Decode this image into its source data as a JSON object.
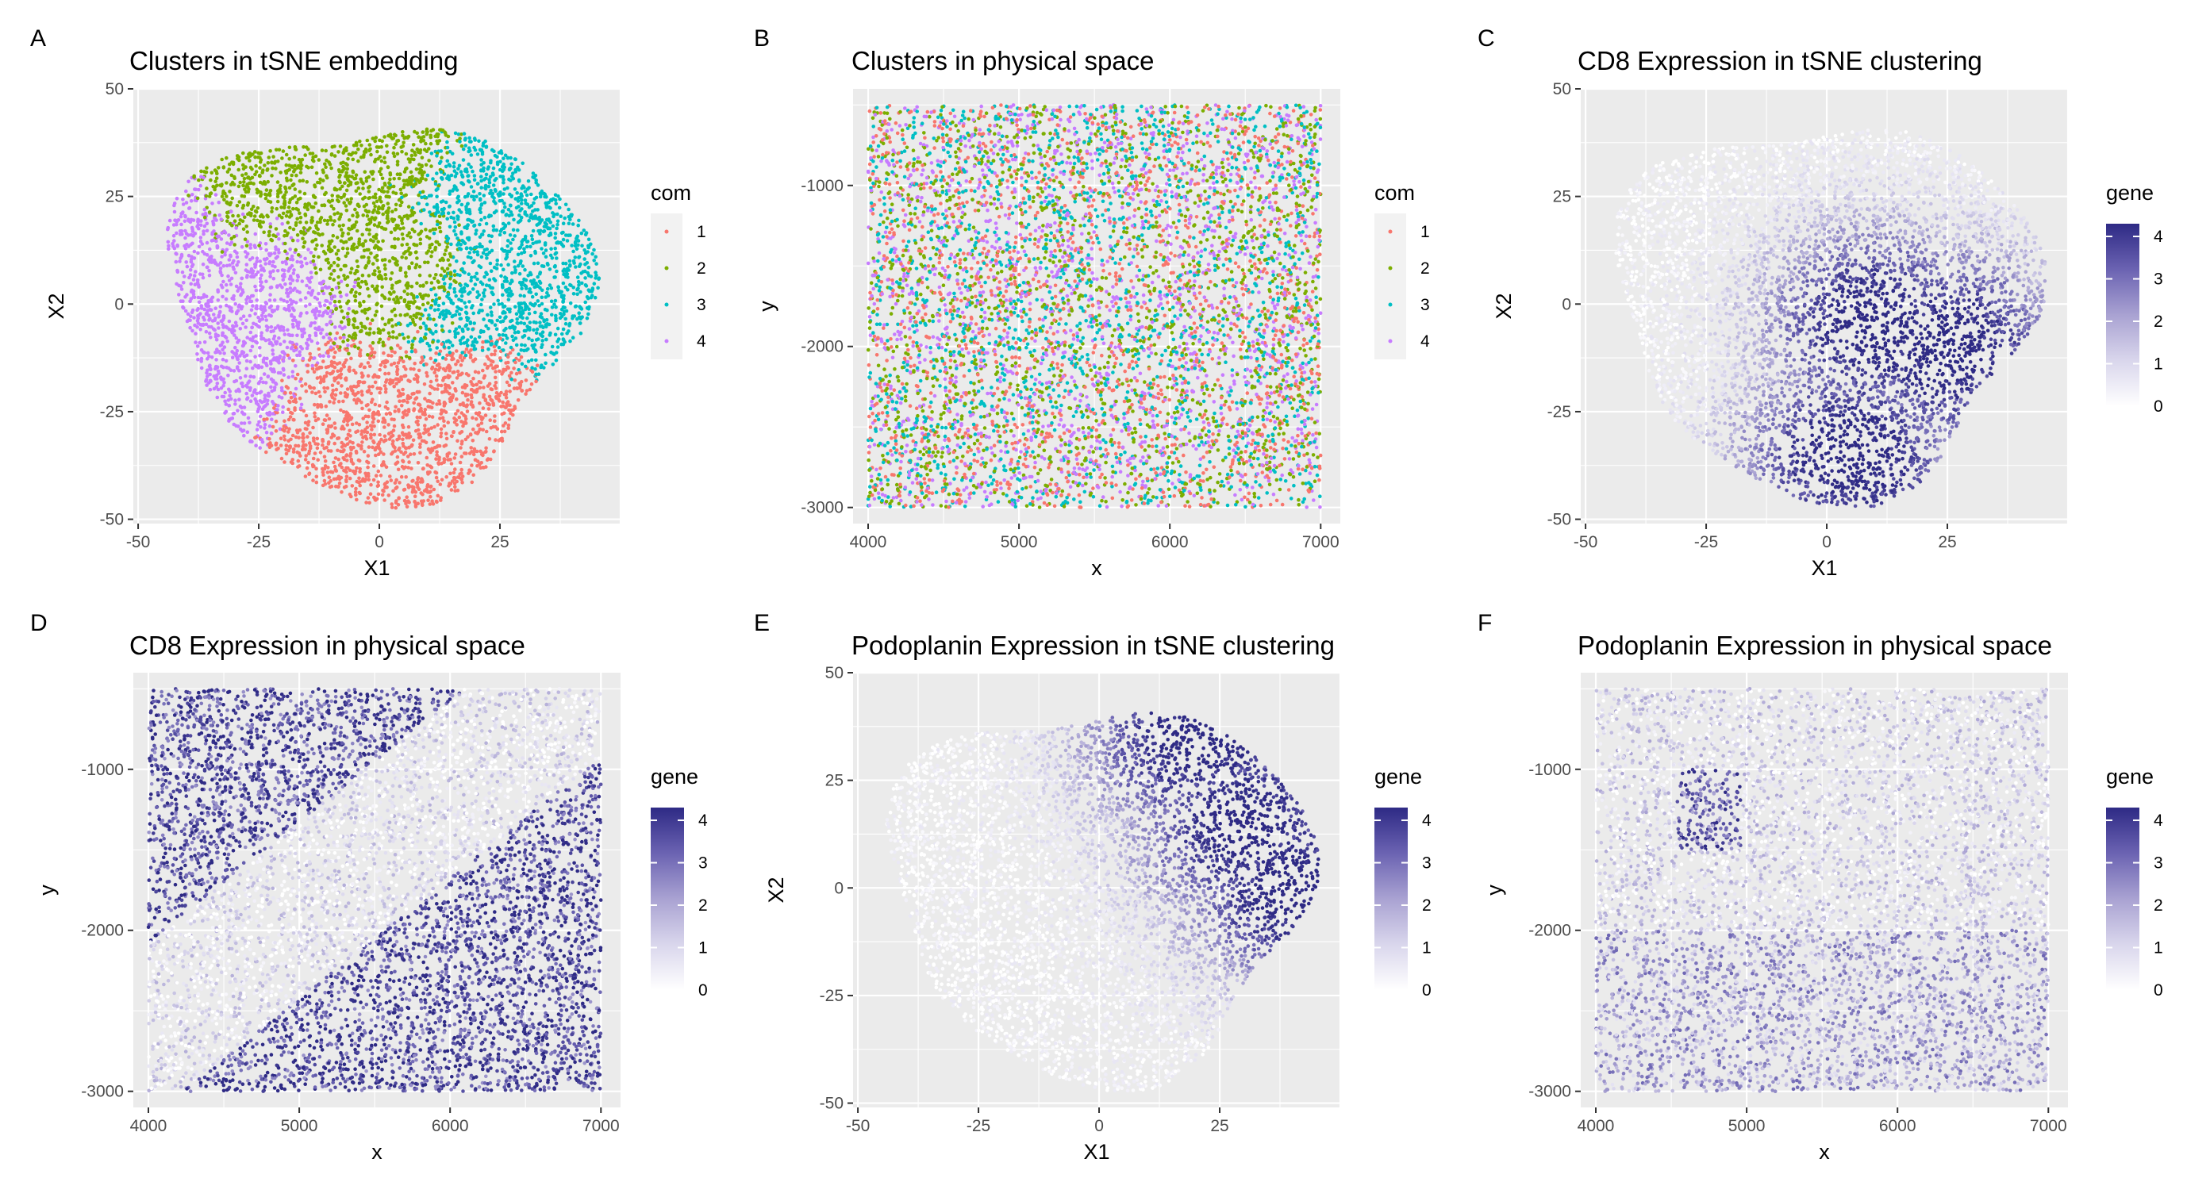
{
  "figure": {
    "scatter_points_note": "",
    "colors": {
      "cluster_1": "#F8766D",
      "cluster_2": "#7CAE00",
      "cluster_3": "#00BFC4",
      "cluster_4": "#C77CFF",
      "gene_low": "#ffffff",
      "gene_high": "#2e2a85",
      "panel_bg": "#ebebeb"
    }
  },
  "chart_data": [
    {
      "panel": "A",
      "type": "scatter",
      "title": "Clusters in tSNE embedding",
      "xlabel": "X1",
      "ylabel": "X2",
      "xlim": [
        -51,
        50
      ],
      "ylim": [
        -51,
        50
      ],
      "xticks": [
        -50,
        -25,
        0,
        25
      ],
      "xtick_labels": [
        "-50",
        "-25",
        "0",
        "25"
      ],
      "yticks": [
        -50,
        -25,
        0,
        25,
        50
      ],
      "ytick_labels": [
        "-50",
        "-25",
        "0",
        "25",
        "50"
      ],
      "color_mode": "cluster",
      "legend": {
        "title": "com",
        "position": "right",
        "kind": "discrete",
        "entries": [
          "1",
          "2",
          "3",
          "4"
        ]
      },
      "series": [
        {
          "name": "1",
          "region_centers": [
            [
              5,
              -25
            ],
            [
              -3,
              -42
            ],
            [
              22,
              -20
            ],
            [
              -15,
              -30
            ]
          ]
        },
        {
          "name": "2",
          "region_centers": [
            [
              -10,
              20
            ],
            [
              -5,
              38
            ],
            [
              -25,
              25
            ],
            [
              8,
              5
            ]
          ]
        },
        {
          "name": "3",
          "region_centers": [
            [
              25,
              20
            ],
            [
              35,
              -5
            ],
            [
              18,
              0
            ],
            [
              40,
              -10
            ]
          ]
        },
        {
          "name": "4",
          "region_centers": [
            [
              -35,
              -5
            ],
            [
              -25,
              5
            ],
            [
              -28,
              -25
            ],
            [
              -40,
              15
            ]
          ]
        }
      ]
    },
    {
      "panel": "B",
      "type": "scatter",
      "title": "Clusters in physical space",
      "xlabel": "x",
      "ylabel": "y",
      "xlim": [
        3900,
        7130
      ],
      "ylim": [
        -3100,
        -400
      ],
      "xticks": [
        4000,
        5000,
        6000,
        7000
      ],
      "xtick_labels": [
        "4000",
        "5000",
        "6000",
        "7000"
      ],
      "yticks": [
        -3000,
        -2000,
        -1000
      ],
      "ytick_labels": [
        "-3000",
        "-2000",
        "-1000"
      ],
      "data_extent": {
        "x": [
          4000,
          7000
        ],
        "y": [
          -3000,
          -500
        ]
      },
      "color_mode": "cluster",
      "legend": {
        "title": "com",
        "position": "right",
        "kind": "discrete",
        "entries": [
          "1",
          "2",
          "3",
          "4"
        ]
      }
    },
    {
      "panel": "C",
      "type": "scatter",
      "title": "CD8 Expression in tSNE clustering",
      "xlabel": "X1",
      "ylabel": "X2",
      "xlim": [
        -51,
        50
      ],
      "ylim": [
        -51,
        50
      ],
      "xticks": [
        -50,
        -25,
        0,
        25
      ],
      "xtick_labels": [
        "-50",
        "-25",
        "0",
        "25"
      ],
      "yticks": [
        -50,
        -25,
        0,
        25,
        50
      ],
      "ytick_labels": [
        "-50",
        "-25",
        "0",
        "25",
        "50"
      ],
      "color_mode": "gene",
      "gene_hotspots": [
        [
          25,
          -10
        ],
        [
          5,
          -35
        ],
        [
          10,
          -5
        ]
      ],
      "legend": {
        "title": "gene",
        "position": "right",
        "kind": "continuous",
        "range": [
          0,
          4.3
        ],
        "ticks": [
          0,
          1,
          2,
          3,
          4
        ],
        "tick_labels": [
          "0",
          "1",
          "2",
          "3",
          "4"
        ]
      }
    },
    {
      "panel": "D",
      "type": "scatter",
      "title": "CD8 Expression in physical space",
      "xlabel": "x",
      "ylabel": "y",
      "xlim": [
        3900,
        7130
      ],
      "ylim": [
        -3100,
        -400
      ],
      "xticks": [
        4000,
        5000,
        6000,
        7000
      ],
      "xtick_labels": [
        "4000",
        "5000",
        "6000",
        "7000"
      ],
      "yticks": [
        -3000,
        -2000,
        -1000
      ],
      "ytick_labels": [
        "-3000",
        "-2000",
        "-1000"
      ],
      "data_extent": {
        "x": [
          4000,
          7000
        ],
        "y": [
          -3000,
          -500
        ]
      },
      "color_mode": "gene",
      "legend": {
        "title": "gene",
        "position": "right",
        "kind": "continuous",
        "range": [
          0,
          4.3
        ],
        "ticks": [
          0,
          1,
          2,
          3,
          4
        ],
        "tick_labels": [
          "0",
          "1",
          "2",
          "3",
          "4"
        ]
      }
    },
    {
      "panel": "E",
      "type": "scatter",
      "title": "Podoplanin Expression in tSNE clustering",
      "xlabel": "X1",
      "ylabel": "X2",
      "xlim": [
        -51,
        50
      ],
      "ylim": [
        -51,
        50
      ],
      "xticks": [
        -50,
        -25,
        0,
        25
      ],
      "xtick_labels": [
        "-50",
        "-25",
        "0",
        "25"
      ],
      "yticks": [
        -50,
        -25,
        0,
        25,
        50
      ],
      "ytick_labels": [
        "-50",
        "-25",
        "0",
        "25",
        "50"
      ],
      "color_mode": "gene",
      "gene_hotspots": [
        [
          20,
          35
        ],
        [
          40,
          0
        ],
        [
          30,
          15
        ]
      ],
      "legend": {
        "title": "gene",
        "position": "right",
        "kind": "continuous",
        "range": [
          0,
          4.3
        ],
        "ticks": [
          0,
          1,
          2,
          3,
          4
        ],
        "tick_labels": [
          "0",
          "1",
          "2",
          "3",
          "4"
        ]
      }
    },
    {
      "panel": "F",
      "type": "scatter",
      "title": "Podoplanin Expression in physical space",
      "xlabel": "x",
      "ylabel": "y",
      "xlim": [
        3900,
        7130
      ],
      "ylim": [
        -3100,
        -400
      ],
      "xticks": [
        4000,
        5000,
        6000,
        7000
      ],
      "xtick_labels": [
        "4000",
        "5000",
        "6000",
        "7000"
      ],
      "yticks": [
        -3000,
        -2000,
        -1000
      ],
      "ytick_labels": [
        "-3000",
        "-2000",
        "-1000"
      ],
      "data_extent": {
        "x": [
          4000,
          7000
        ],
        "y": [
          -3000,
          -500
        ]
      },
      "color_mode": "gene",
      "legend": {
        "title": "gene",
        "position": "right",
        "kind": "continuous",
        "range": [
          0,
          4.3
        ],
        "ticks": [
          0,
          1,
          2,
          3,
          4
        ],
        "tick_labels": [
          "0",
          "1",
          "2",
          "3",
          "4"
        ]
      }
    }
  ]
}
